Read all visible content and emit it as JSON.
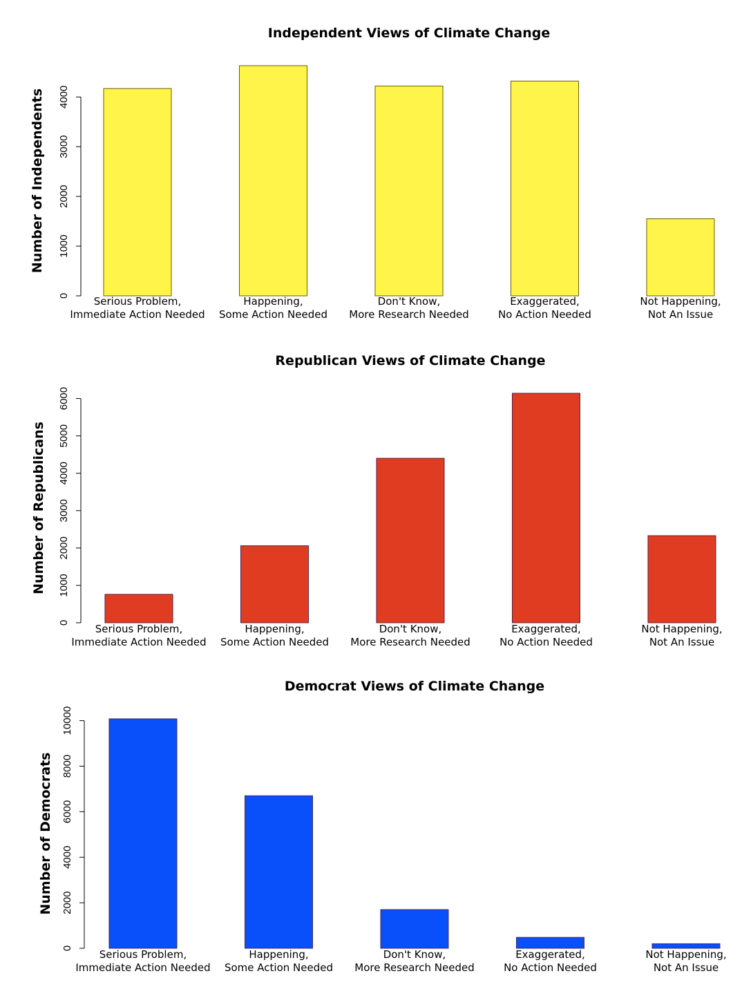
{
  "chart_data": [
    {
      "type": "bar",
      "title": "Independent Views of Climate Change",
      "ylabel": "Number of Independents",
      "xlabel": "",
      "categories": [
        [
          "Serious Problem,",
          "Immediate Action Needed"
        ],
        [
          "Happening,",
          "Some Action Needed"
        ],
        [
          "Don't Know,",
          "More Research Needed"
        ],
        [
          "Exaggerated,",
          "No Action Needed"
        ],
        [
          "Not Happening,",
          "Not An Issue"
        ]
      ],
      "values": [
        4170,
        4630,
        4220,
        4320,
        1550
      ],
      "ylim": [
        0,
        4630
      ],
      "yticks": [
        0,
        1000,
        2000,
        3000,
        4000
      ],
      "color": "#FFF44A",
      "edge_color": "#6B5A00",
      "grid": false
    },
    {
      "type": "bar",
      "title": "Republican Views of Climate Change",
      "ylabel": "Number of Republicans",
      "xlabel": "",
      "categories": [
        [
          "Serious Problem,",
          "Immediate Action Needed"
        ],
        [
          "Happening,",
          "Some Action Needed"
        ],
        [
          "Don't Know,",
          "More Research Needed"
        ],
        [
          "Exaggerated,",
          "No Action Needed"
        ],
        [
          "Not Happening,",
          "Not An Issue"
        ]
      ],
      "values": [
        760,
        2060,
        4400,
        6140,
        2330
      ],
      "ylim": [
        0,
        6140
      ],
      "yticks": [
        0,
        1000,
        2000,
        3000,
        4000,
        5000,
        6000
      ],
      "color": "#E03C22",
      "edge_color": "#5A1E3C",
      "grid": false
    },
    {
      "type": "bar",
      "title": "Democrat Views of Climate Change",
      "ylabel": "Number of Democrats",
      "xlabel": "",
      "categories": [
        [
          "Serious Problem,",
          "Immediate Action Needed"
        ],
        [
          "Happening,",
          "Some Action Needed"
        ],
        [
          "Don't Know,",
          "More Research Needed"
        ],
        [
          "Exaggerated,",
          "No Action Needed"
        ],
        [
          "Not Happening,",
          "Not An Issue"
        ]
      ],
      "values": [
        10080,
        6700,
        1700,
        480,
        200
      ],
      "ylim": [
        0,
        10080
      ],
      "yticks": [
        0,
        2000,
        4000,
        6000,
        8000,
        10000
      ],
      "color": "#0A50FA",
      "edge_color": "#3A2A6A",
      "grid": false
    }
  ]
}
